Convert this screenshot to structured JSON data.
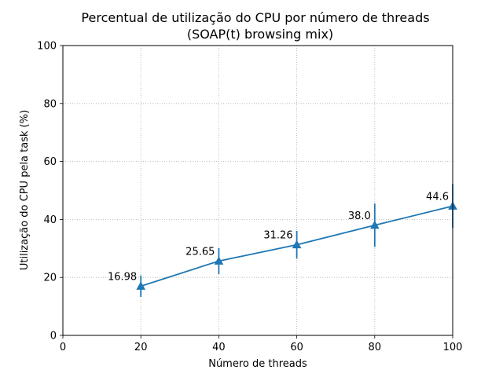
{
  "chart_data": {
    "type": "line",
    "title": "Percentual de utilização do CPU por número de threads",
    "subtitle": "(SOAP(t) browsing mix)",
    "xlabel": "Número de threads",
    "ylabel": "Utilização do CPU pela task (%)",
    "xlim": [
      0,
      100
    ],
    "ylim": [
      0,
      100
    ],
    "xticks": [
      0,
      20,
      40,
      60,
      80,
      100
    ],
    "yticks": [
      0,
      20,
      40,
      60,
      80,
      100
    ],
    "grid": true,
    "color": "#1f77b4",
    "marker": "triangle",
    "series": [
      {
        "x": [
          20,
          40,
          60,
          80,
          100
        ],
        "y": [
          16.98,
          25.65,
          31.26,
          38.0,
          44.6
        ],
        "error": [
          3.7,
          4.5,
          4.8,
          7.5,
          7.6
        ],
        "labels": [
          "16.98",
          "25.65",
          "31.26",
          "38.0",
          "44.6"
        ]
      }
    ]
  }
}
